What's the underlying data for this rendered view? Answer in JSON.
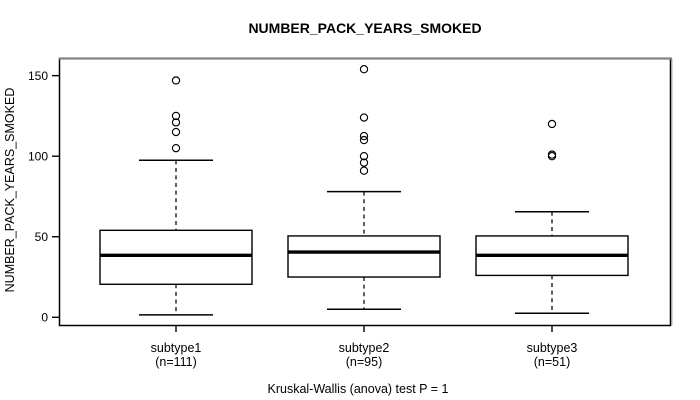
{
  "title": "NUMBER_PACK_YEARS_SMOKED",
  "caption": "Kruskal-Wallis (anova) test P = 1",
  "colors": {
    "line": "#000000",
    "background": "#ffffff",
    "frame_top_shadow": "#848484",
    "box_fill": "#ffffff"
  },
  "chart_data": {
    "type": "boxplot",
    "title": "NUMBER_PACK_YEARS_SMOKED",
    "ylabel": "NUMBER_PACK_YEARS_SMOKED",
    "xlabel": "",
    "footnote": "Kruskal-Wallis (anova) test P = 1",
    "ylim": [
      0,
      155
    ],
    "yticks": [
      0,
      50,
      100,
      150
    ],
    "ytick_labels": [
      "0",
      "50",
      "100",
      "150"
    ],
    "grid": false,
    "legend": null,
    "groups": [
      {
        "label": "subtype1",
        "sublabel": "(n=111)",
        "stats": {
          "whisker_low": 1.5,
          "q1": 20.5,
          "median": 38.5,
          "q3": 54,
          "whisker_high": 97.5
        },
        "outliers": [
          105,
          115,
          121,
          125,
          147
        ]
      },
      {
        "label": "subtype2",
        "sublabel": "(n=95)",
        "stats": {
          "whisker_low": 5,
          "q1": 25,
          "median": 40.5,
          "q3": 50.5,
          "whisker_high": 78
        },
        "outliers": [
          91,
          96,
          100,
          110,
          112.5,
          124,
          154
        ]
      },
      {
        "label": "subtype3",
        "sublabel": "(n=51)",
        "stats": {
          "whisker_low": 2.5,
          "q1": 26,
          "median": 38.5,
          "q3": 50.5,
          "whisker_high": 65.5
        },
        "outliers": [
          100,
          101,
          120
        ]
      }
    ]
  }
}
